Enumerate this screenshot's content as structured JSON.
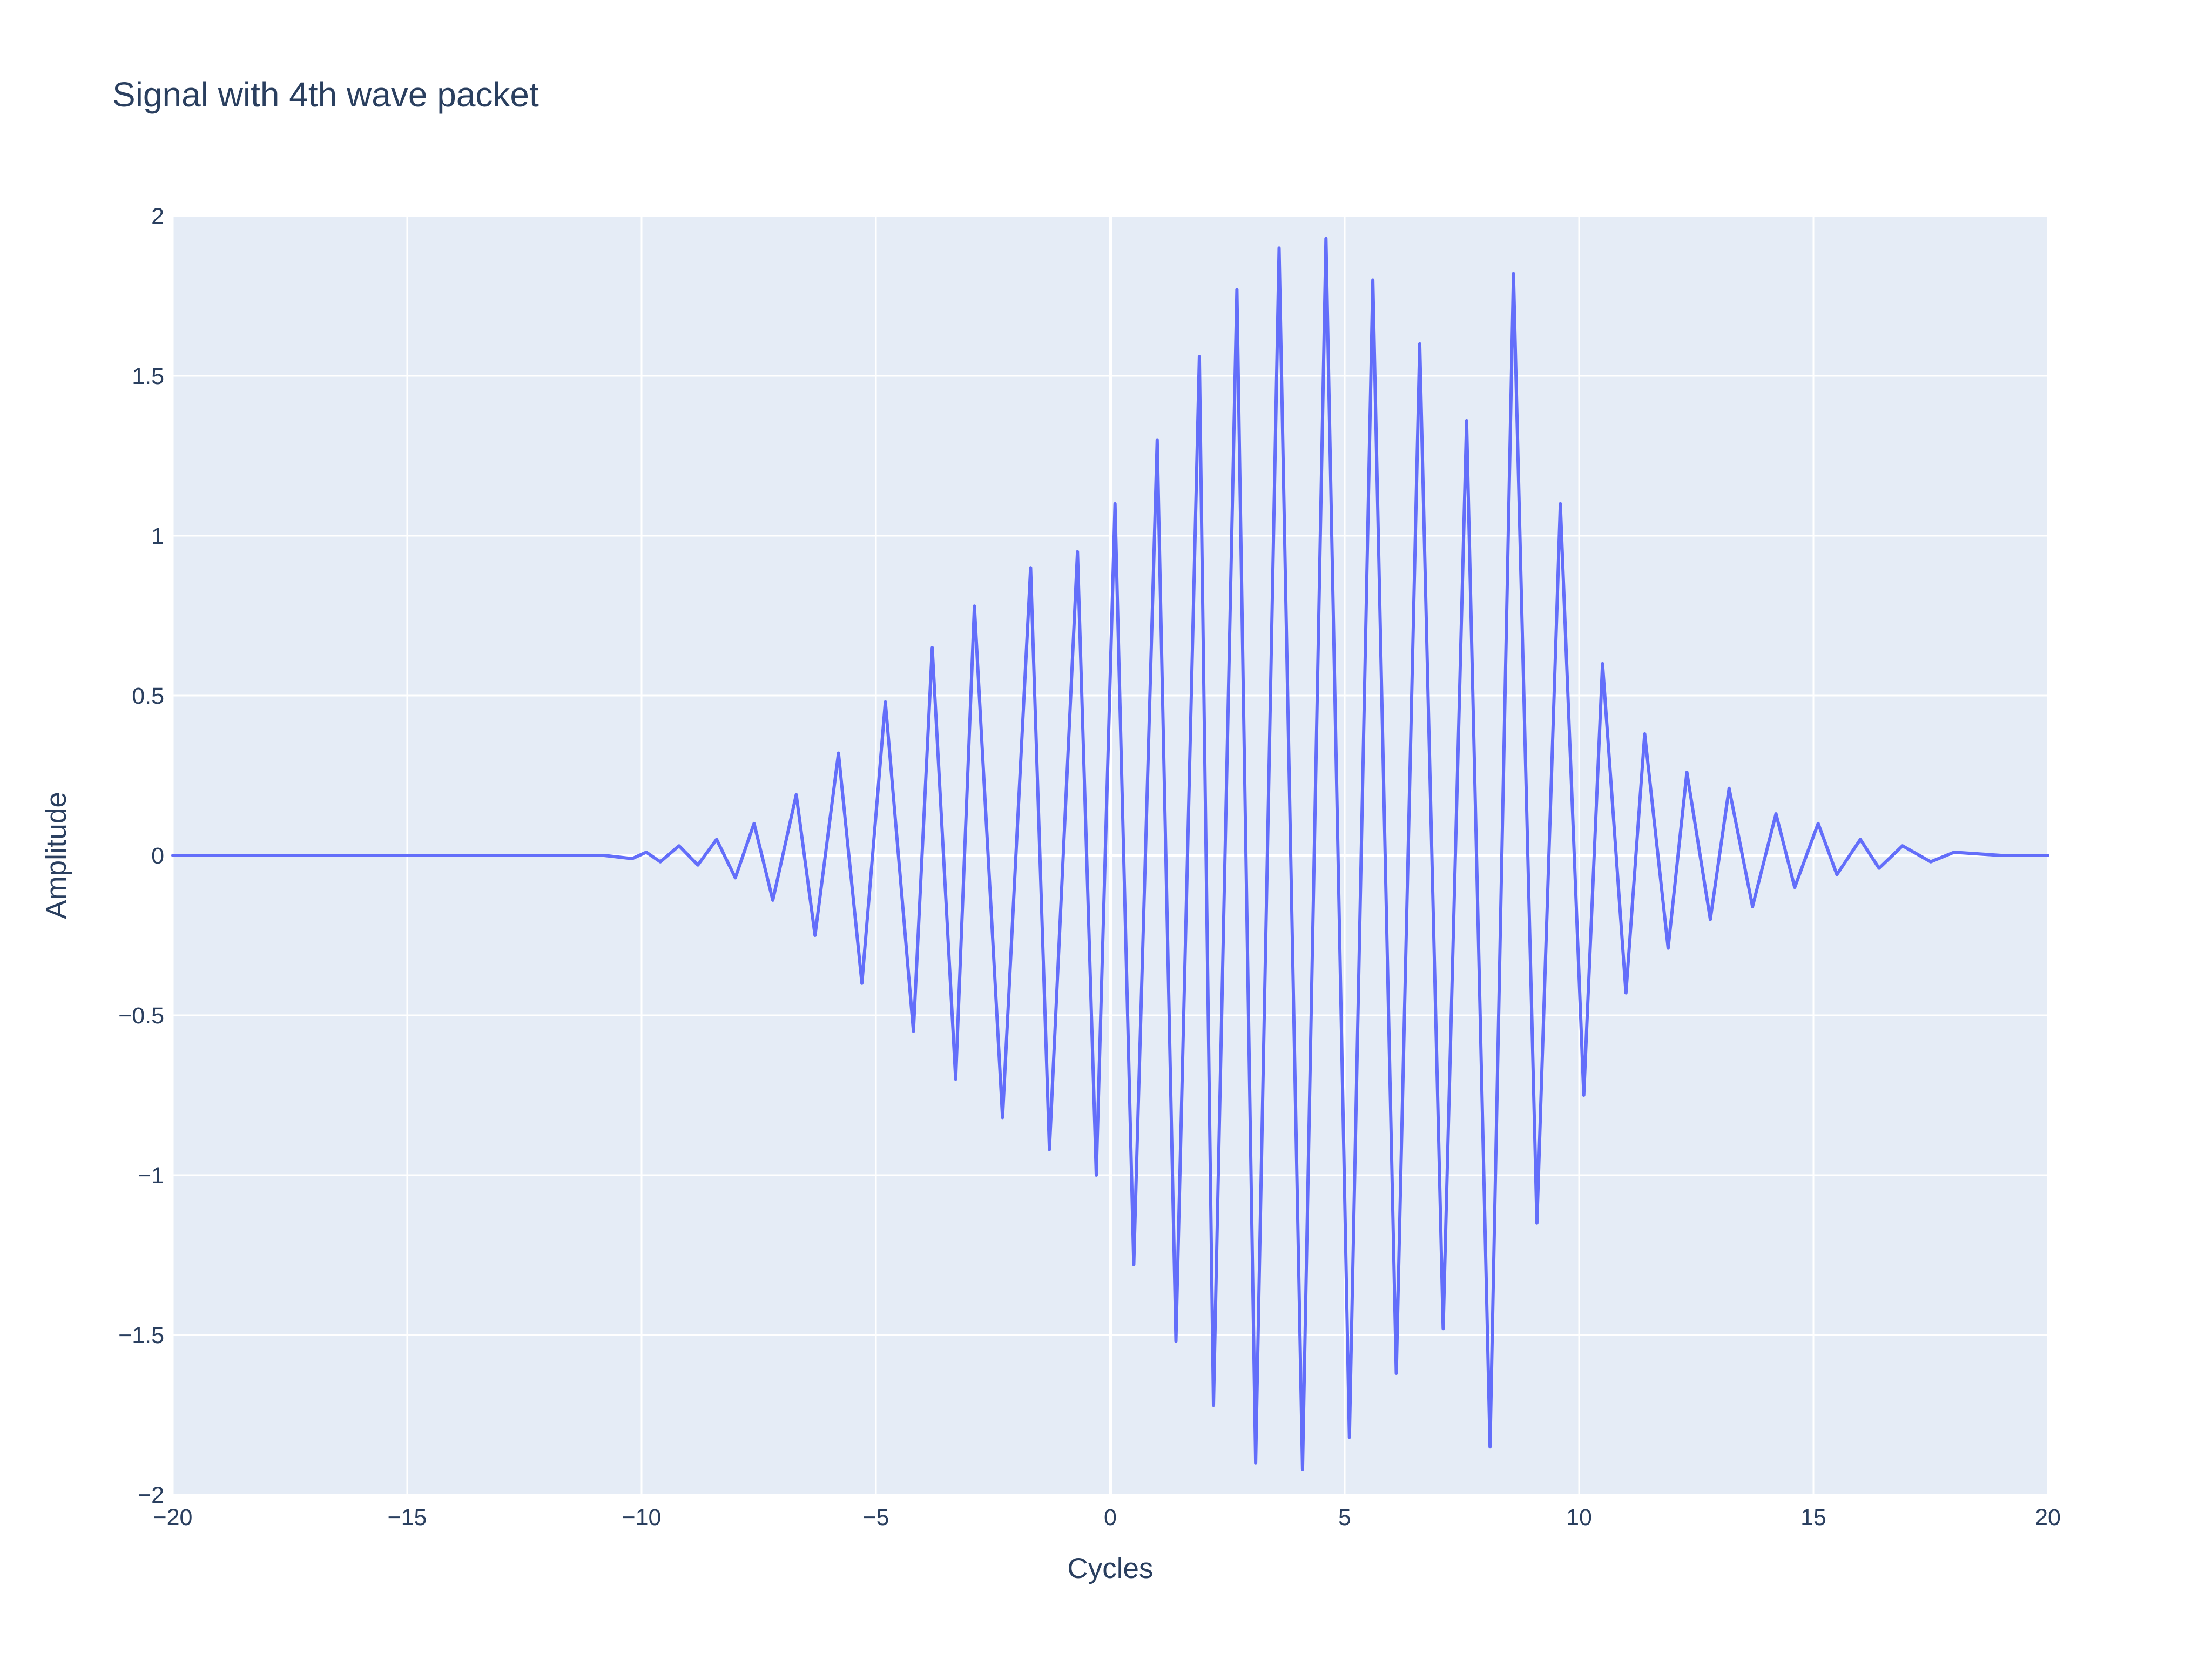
{
  "chart_data": {
    "type": "line",
    "title": "Signal with 4th wave packet",
    "xlabel": "Cycles",
    "ylabel": "Amplitude",
    "xlim": [
      -20,
      20
    ],
    "ylim": [
      -2,
      2
    ],
    "x_ticks": [
      -20,
      -15,
      -10,
      -5,
      0,
      5,
      10,
      15,
      20
    ],
    "x_tick_labels": [
      "−20",
      "−15",
      "−10",
      "−5",
      "0",
      "5",
      "10",
      "15",
      "20"
    ],
    "y_ticks": [
      -2,
      -1.5,
      -1,
      -0.5,
      0,
      0.5,
      1,
      1.5,
      2
    ],
    "y_tick_labels": [
      "−2",
      "−1.5",
      "−1",
      "−0.5",
      "0",
      "0.5",
      "1",
      "1.5",
      "2"
    ],
    "grid": true,
    "legend": "none",
    "colors": {
      "line": "#636efa",
      "plot_bg": "#e5ecf6",
      "grid": "#ffffff",
      "text": "#2a3f5f"
    },
    "series": [
      {
        "x": [
          -20,
          -19,
          -18,
          -17,
          -16,
          -15,
          -14,
          -13,
          -12,
          -11,
          -10.8,
          -10.2,
          -9.9,
          -9.6,
          -9.2,
          -8.8,
          -8.4,
          -8.0,
          -7.6,
          -7.2,
          -6.7,
          -6.3,
          -5.8,
          -5.3,
          -4.8,
          -4.2,
          -3.8,
          -3.3,
          -2.9,
          -2.3,
          -1.7,
          -1.3,
          -0.7,
          -0.3,
          0.1,
          0.5,
          1.0,
          1.4,
          1.9,
          2.2,
          2.7,
          3.1,
          3.6,
          4.1,
          4.6,
          5.1,
          5.6,
          6.1,
          6.6,
          7.1,
          7.6,
          8.1,
          8.6,
          9.1,
          9.6,
          10.1,
          10.5,
          11.0,
          11.4,
          11.9,
          12.3,
          12.8,
          13.2,
          13.7,
          14.2,
          14.6,
          15.1,
          15.5,
          16.0,
          16.4,
          16.9,
          17.5,
          18.0,
          19.0,
          20.0
        ],
        "values": [
          0,
          0,
          0,
          0,
          0,
          0,
          0,
          0,
          0,
          0,
          0,
          -0.01,
          0.01,
          -0.02,
          0.03,
          -0.03,
          0.05,
          -0.07,
          0.1,
          -0.14,
          0.19,
          -0.25,
          0.32,
          -0.4,
          0.48,
          -0.55,
          0.65,
          -0.7,
          0.78,
          -0.82,
          0.9,
          -0.92,
          0.95,
          -1.0,
          1.1,
          -1.28,
          1.3,
          -1.52,
          1.56,
          -1.72,
          1.77,
          -1.9,
          1.9,
          -1.92,
          1.93,
          -1.82,
          1.8,
          -1.62,
          1.6,
          -1.48,
          1.36,
          -1.85,
          1.82,
          -1.15,
          1.1,
          -0.75,
          0.6,
          -0.43,
          0.38,
          -0.29,
          0.26,
          -0.2,
          0.21,
          -0.16,
          0.13,
          -0.1,
          0.1,
          -0.06,
          0.05,
          -0.04,
          0.03,
          -0.02,
          0.01,
          0,
          0
        ]
      }
    ]
  }
}
